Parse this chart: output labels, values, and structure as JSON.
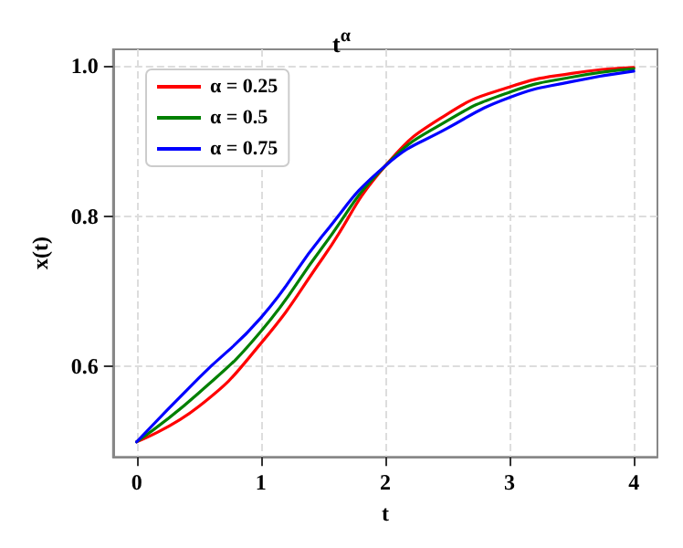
{
  "chart_data": {
    "type": "line",
    "title": "t$^{α}$",
    "xlabel": "t",
    "ylabel": "x(t)",
    "x": [
      0,
      0.5,
      1,
      1.5,
      2,
      2.5,
      3,
      3.5,
      4
    ],
    "series": [
      {
        "name": "α = 0.25",
        "color": "#ff0000",
        "values": [
          0.5,
          0.547,
          0.631,
          0.745,
          0.867,
          0.936,
          0.972,
          0.99,
          0.998
        ]
      },
      {
        "name": "α = 0.5",
        "color": "#008000",
        "values": [
          0.5,
          0.565,
          0.647,
          0.76,
          0.867,
          0.927,
          0.965,
          0.985,
          0.996
        ]
      },
      {
        "name": "α = 0.75",
        "color": "#0000ff",
        "values": [
          0.5,
          0.585,
          0.665,
          0.775,
          0.867,
          0.917,
          0.958,
          0.979,
          0.993
        ]
      }
    ],
    "xlim": [
      -0.19,
      4.19
    ],
    "xticks": [
      0,
      1,
      2,
      3,
      4
    ],
    "ylim": [
      0.48,
      1.022
    ],
    "yticks": [
      0.6,
      0.8,
      {
        "value": 1,
        "label": "1.0"
      }
    ],
    "grid": true,
    "legend": "top left",
    "marker": "none",
    "line_style": "solid"
  }
}
